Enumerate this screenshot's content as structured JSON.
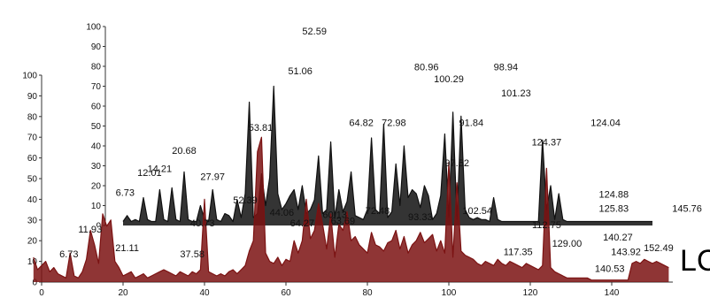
{
  "chart_data": [
    {
      "type": "line",
      "panel": "back",
      "series": [
        {
          "color": "#101010",
          "x": [
            20,
            21,
            22,
            23,
            24,
            25,
            26,
            27,
            28,
            29,
            30,
            31,
            32,
            33,
            34,
            35,
            36,
            37,
            38,
            39,
            40,
            41,
            42,
            43,
            44,
            45,
            46,
            47,
            48,
            49,
            50,
            51,
            52,
            53,
            54,
            55,
            56,
            57,
            58,
            59,
            60,
            61,
            62,
            63,
            64,
            65,
            66,
            67,
            68,
            69,
            70,
            71,
            72,
            73,
            74,
            75,
            76,
            77,
            78,
            79,
            80,
            81,
            82,
            83,
            84,
            85,
            86,
            87,
            88,
            89,
            90,
            91,
            92,
            93,
            94,
            95,
            96,
            97,
            98,
            99,
            100,
            101,
            102,
            103,
            104,
            105,
            106,
            107,
            108,
            109,
            110,
            111,
            112,
            113,
            114,
            115,
            116,
            117,
            118,
            119,
            120,
            121,
            122,
            123,
            124,
            125,
            126,
            127,
            128,
            129,
            130,
            131,
            132,
            133,
            134,
            135,
            136,
            137,
            138,
            139,
            140,
            141,
            142,
            143,
            144,
            145,
            146,
            147,
            148,
            149,
            150
          ],
          "values": [
            2,
            5,
            2,
            3,
            2,
            14,
            3,
            2,
            2,
            18,
            3,
            2,
            19,
            3,
            2,
            27,
            3,
            2,
            2,
            10,
            3,
            2,
            18,
            3,
            2,
            6,
            5,
            2,
            13,
            4,
            16,
            62,
            4,
            6,
            26,
            10,
            24,
            70,
            16,
            8,
            11,
            15,
            18,
            8,
            20,
            6,
            8,
            13,
            35,
            6,
            8,
            42,
            4,
            18,
            7,
            12,
            27,
            5,
            4,
            3,
            8,
            44,
            8,
            6,
            51,
            4,
            7,
            31,
            10,
            40,
            14,
            18,
            16,
            9,
            20,
            15,
            3,
            6,
            15,
            46,
            4,
            57,
            3,
            55,
            8,
            4,
            3,
            4,
            3,
            3,
            2,
            14,
            3,
            2,
            2,
            2,
            2,
            2,
            2,
            2,
            2,
            2,
            2,
            43,
            8,
            20,
            3,
            16,
            3,
            2,
            2,
            2,
            2,
            2,
            2,
            2,
            2,
            2,
            2,
            2,
            2,
            2,
            2,
            2,
            2,
            2,
            2,
            2,
            2,
            2,
            2
          ]
        }
      ],
      "yticks": [
        "0",
        "10",
        "20",
        "30",
        "40",
        "50",
        "60",
        "70",
        "80",
        "90",
        "100"
      ],
      "ylim": [
        0,
        100
      ],
      "peak_labels": [
        {
          "text": "12.01",
          "x": 26.5,
          "y": 25
        },
        {
          "text": "14.21",
          "x": 29.0,
          "y": 27
        },
        {
          "text": "6.73",
          "x": 20.5,
          "y": 15
        },
        {
          "text": "20.68",
          "x": 35.0,
          "y": 36
        },
        {
          "text": "27.97",
          "x": 42.0,
          "y": 23
        },
        {
          "text": "52.59",
          "x": 67.0,
          "y": 96
        },
        {
          "text": "51.06",
          "x": 63.5,
          "y": 76
        },
        {
          "text": "64.82",
          "x": 78.5,
          "y": 50
        },
        {
          "text": "72.98",
          "x": 86.5,
          "y": 50
        },
        {
          "text": "80.96",
          "x": 94.5,
          "y": 78
        },
        {
          "text": "100.29",
          "x": 100.0,
          "y": 72
        },
        {
          "text": "91.84",
          "x": 105.5,
          "y": 50
        },
        {
          "text": "98.94",
          "x": 114.0,
          "y": 78
        },
        {
          "text": "101.23",
          "x": 116.5,
          "y": 65
        },
        {
          "text": "124.04",
          "x": 138.5,
          "y": 50
        },
        {
          "text": "124.88",
          "x": 140.5,
          "y": 14
        },
        {
          "text": "125.83",
          "x": 140.5,
          "y": 7
        },
        {
          "text": "145.76",
          "x": 158.5,
          "y": 7
        }
      ]
    },
    {
      "type": "line",
      "panel": "front",
      "series": [
        {
          "color": "#7b1212",
          "x": [
            0,
            1,
            2,
            3,
            4,
            5,
            6,
            7,
            8,
            9,
            10,
            11,
            12,
            13,
            14,
            15,
            16,
            17,
            18,
            19,
            20,
            21,
            22,
            23,
            24,
            25,
            26,
            27,
            28,
            29,
            30,
            31,
            32,
            33,
            34,
            35,
            36,
            37,
            38,
            39,
            40,
            41,
            42,
            43,
            44,
            45,
            46,
            47,
            48,
            49,
            50,
            51,
            52,
            53,
            54,
            55,
            56,
            57,
            58,
            59,
            60,
            61,
            62,
            63,
            64,
            65,
            66,
            67,
            68,
            69,
            70,
            71,
            72,
            73,
            74,
            75,
            76,
            77,
            78,
            79,
            80,
            81,
            82,
            83,
            84,
            85,
            86,
            87,
            88,
            89,
            90,
            91,
            92,
            93,
            94,
            95,
            96,
            97,
            98,
            99,
            100,
            101,
            102,
            103,
            104,
            105,
            106,
            107,
            108,
            109,
            110,
            111,
            112,
            113,
            114,
            115,
            116,
            117,
            118,
            119,
            120,
            121,
            122,
            123,
            124,
            125,
            126,
            127,
            128,
            129,
            130,
            131,
            132,
            133,
            134,
            135,
            136,
            137,
            138,
            139,
            140,
            141,
            142,
            143,
            144,
            145,
            146,
            147,
            148,
            149,
            150,
            151,
            152,
            153,
            154
          ],
          "values": [
            8,
            10,
            5,
            7,
            4,
            3,
            2,
            14,
            3,
            2,
            5,
            11,
            25,
            18,
            9,
            33,
            27,
            30,
            10,
            7,
            3,
            4,
            5,
            2,
            3,
            4,
            2,
            3,
            4,
            5,
            6,
            5,
            4,
            3,
            5,
            4,
            3,
            5,
            4,
            6,
            40,
            5,
            4,
            3,
            4,
            3,
            5,
            6,
            4,
            6,
            8,
            15,
            20,
            63,
            70,
            14,
            10,
            9,
            12,
            8,
            11,
            10,
            20,
            14,
            20,
            40,
            21,
            25,
            38,
            28,
            16,
            33,
            12,
            28,
            25,
            34,
            20,
            22,
            18,
            16,
            14,
            24,
            18,
            17,
            15,
            19,
            20,
            25,
            16,
            22,
            14,
            18,
            20,
            24,
            19,
            21,
            23,
            15,
            20,
            14,
            58,
            12,
            48,
            15,
            13,
            12,
            11,
            9,
            8,
            10,
            9,
            8,
            11,
            9,
            8,
            10,
            9,
            8,
            7,
            9,
            8,
            7,
            6,
            8,
            55,
            7,
            5,
            4,
            3,
            2,
            2,
            2,
            2,
            2,
            2,
            1,
            1,
            1,
            1,
            1,
            1,
            1,
            1,
            1,
            1,
            9,
            10,
            9,
            11,
            10,
            9,
            10,
            9,
            8,
            7
          ],
          "lead": [
            [
              -2,
              12
            ],
            [
              -1,
              6
            ]
          ]
        }
      ],
      "xticks": [
        "0",
        "20",
        "40",
        "60",
        "80",
        "100",
        "120",
        "140"
      ],
      "yticks": [
        "0",
        "10",
        "20",
        "30",
        "40",
        "50",
        "60",
        "70",
        "80",
        "90",
        "100"
      ],
      "xlim": [
        0,
        155
      ],
      "ylim": [
        0,
        100
      ],
      "peak_labels": [
        {
          "text": "6.73",
          "x": 6.7,
          "y": 12
        },
        {
          "text": "11.93",
          "x": 11.9,
          "y": 24
        },
        {
          "text": "21.11",
          "x": 21.0,
          "y": 15
        },
        {
          "text": "53.81",
          "x": 53.8,
          "y": 73
        },
        {
          "text": "52.39",
          "x": 50.0,
          "y": 38
        },
        {
          "text": "40.73",
          "x": 39.5,
          "y": 27
        },
        {
          "text": "37.58",
          "x": 37.0,
          "y": 12
        },
        {
          "text": "44.06",
          "x": 59.0,
          "y": 32
        },
        {
          "text": "64.27",
          "x": 64.0,
          "y": 27
        },
        {
          "text": "60.13",
          "x": 72.0,
          "y": 31
        },
        {
          "text": "63.69",
          "x": 74.0,
          "y": 28
        },
        {
          "text": "72.48",
          "x": 82.5,
          "y": 33
        },
        {
          "text": "93.33",
          "x": 93.0,
          "y": 30
        },
        {
          "text": "97.52",
          "x": 102.0,
          "y": 56
        },
        {
          "text": "102.54",
          "x": 107.0,
          "y": 33
        },
        {
          "text": "124.37",
          "x": 124.0,
          "y": 66
        },
        {
          "text": "112.75",
          "x": 124.0,
          "y": 26
        },
        {
          "text": "117.35",
          "x": 117.0,
          "y": 13
        },
        {
          "text": "129.00",
          "x": 129.0,
          "y": 17
        },
        {
          "text": "140.27",
          "x": 141.5,
          "y": 20
        },
        {
          "text": "143.92",
          "x": 143.5,
          "y": 13
        },
        {
          "text": "140.53",
          "x": 139.5,
          "y": 5
        },
        {
          "text": "152.49",
          "x": 151.5,
          "y": 15
        }
      ]
    }
  ],
  "clipped_label": "LC"
}
